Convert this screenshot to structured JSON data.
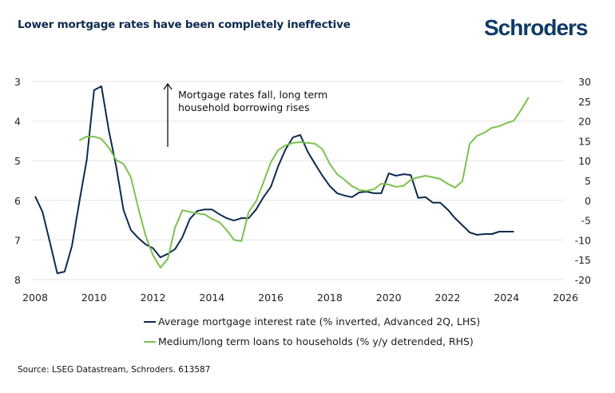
{
  "header": {
    "title": "Lower mortgage rates have been completely ineffective",
    "logo": "Schroders"
  },
  "chart_data": {
    "type": "line",
    "title": "Lower mortgage rates have been completely ineffective",
    "x_ticks": [
      "2008",
      "2010",
      "2012",
      "2014",
      "2016",
      "2018",
      "2020",
      "2022",
      "2024",
      "2026"
    ],
    "xlim": [
      2008,
      2026
    ],
    "y_left": {
      "ticks": [
        "3",
        "4",
        "5",
        "6",
        "7",
        "8"
      ],
      "range": [
        3,
        8
      ],
      "inverted": true
    },
    "y_right": {
      "ticks": [
        "30",
        "25",
        "20",
        "15",
        "10",
        "5",
        "0",
        "-5",
        "-10",
        "-15",
        "-20"
      ],
      "range": [
        -20,
        30
      ]
    },
    "grid": "horizontal",
    "legend_position": "bottom",
    "annotation": {
      "lines": [
        "Mortgage rates fall, long term",
        "household borrowing rises"
      ],
      "arrow": "up"
    },
    "series": [
      {
        "name": "Average mortgage interest rate (% inverted, Advanced 2Q, LHS)",
        "axis": "left",
        "color": "#0d2b4e",
        "x": [
          "2008Q1",
          "2008Q2",
          "2008Q3",
          "2008Q4",
          "2009Q1",
          "2009Q2",
          "2009Q3",
          "2009Q4",
          "2010Q1",
          "2010Q2",
          "2010Q3",
          "2010Q4",
          "2011Q1",
          "2011Q2",
          "2011Q3",
          "2011Q4",
          "2012Q1",
          "2012Q2",
          "2012Q3",
          "2012Q4",
          "2013Q1",
          "2013Q2",
          "2013Q3",
          "2013Q4",
          "2014Q1",
          "2014Q2",
          "2014Q3",
          "2014Q4",
          "2015Q1",
          "2015Q2",
          "2015Q3",
          "2015Q4",
          "2016Q1",
          "2016Q2",
          "2016Q3",
          "2016Q4",
          "2017Q1",
          "2017Q2",
          "2017Q3",
          "2017Q4",
          "2018Q1",
          "2018Q2",
          "2018Q3",
          "2018Q4",
          "2019Q1",
          "2019Q2",
          "2019Q3",
          "2019Q4",
          "2020Q1",
          "2020Q2",
          "2020Q3",
          "2020Q4",
          "2021Q1",
          "2021Q2",
          "2021Q3",
          "2021Q4",
          "2022Q1",
          "2022Q2",
          "2022Q3",
          "2022Q4",
          "2023Q1",
          "2023Q2",
          "2023Q3",
          "2023Q4",
          "2024Q1",
          "2024Q2"
        ],
        "values": [
          5.9,
          6.29,
          7.05,
          7.84,
          7.8,
          7.15,
          6.04,
          4.98,
          3.22,
          3.12,
          4.23,
          5.14,
          6.25,
          6.75,
          6.95,
          7.11,
          7.21,
          7.44,
          7.35,
          7.23,
          6.93,
          6.47,
          6.27,
          6.23,
          6.23,
          6.35,
          6.45,
          6.51,
          6.45,
          6.45,
          6.23,
          5.92,
          5.66,
          5.14,
          4.71,
          4.41,
          4.35,
          4.77,
          5.08,
          5.38,
          5.64,
          5.82,
          5.88,
          5.92,
          5.8,
          5.78,
          5.82,
          5.82,
          5.32,
          5.38,
          5.34,
          5.36,
          5.94,
          5.92,
          6.06,
          6.06,
          6.23,
          6.45,
          6.63,
          6.81,
          6.87,
          6.85,
          6.85,
          6.79,
          6.79,
          6.79
        ]
      },
      {
        "name": "Medium/long term loans to households (% y/y detrended, RHS)",
        "axis": "right",
        "color": "#7cc24e",
        "x": [
          "2009Q3",
          "2009Q4",
          "2010Q1",
          "2010Q2",
          "2010Q3",
          "2010Q4",
          "2011Q1",
          "2011Q2",
          "2011Q3",
          "2011Q4",
          "2012Q1",
          "2012Q2",
          "2012Q3",
          "2012Q4",
          "2013Q1",
          "2013Q2",
          "2013Q3",
          "2013Q4",
          "2014Q1",
          "2014Q2",
          "2014Q3",
          "2014Q4",
          "2015Q1",
          "2015Q2",
          "2015Q3",
          "2015Q4",
          "2016Q1",
          "2016Q2",
          "2016Q3",
          "2016Q4",
          "2017Q1",
          "2017Q2",
          "2017Q3",
          "2017Q4",
          "2018Q1",
          "2018Q2",
          "2018Q3",
          "2018Q4",
          "2019Q1",
          "2019Q2",
          "2019Q3",
          "2019Q4",
          "2020Q1",
          "2020Q2",
          "2020Q3",
          "2020Q4",
          "2021Q1",
          "2021Q2",
          "2021Q3",
          "2021Q4",
          "2022Q1",
          "2022Q2",
          "2022Q3",
          "2022Q4",
          "2023Q1",
          "2023Q2",
          "2023Q3",
          "2023Q4",
          "2024Q1",
          "2024Q2",
          "2024Q3",
          "2024Q4"
        ],
        "values": [
          15.1,
          16.1,
          16.1,
          15.5,
          13.3,
          10.2,
          9.2,
          5.8,
          -1.9,
          -8.9,
          -13.9,
          -17.0,
          -14.8,
          -6.9,
          -2.5,
          -2.9,
          -3.3,
          -3.5,
          -4.7,
          -5.5,
          -7.5,
          -10.0,
          -10.3,
          -2.9,
          -0.2,
          4.6,
          9.6,
          12.7,
          13.9,
          14.5,
          14.7,
          14.5,
          14.3,
          12.9,
          9.2,
          6.6,
          5.2,
          3.6,
          2.6,
          2.4,
          2.8,
          4.2,
          4.0,
          3.4,
          3.6,
          5.2,
          5.8,
          6.2,
          5.8,
          5.4,
          4.2,
          3.2,
          4.8,
          14.3,
          16.3,
          17.1,
          18.3,
          18.7,
          19.5,
          20.1,
          22.9,
          26.0
        ]
      }
    ]
  },
  "legend": {
    "items": [
      "Average mortgage interest rate (% inverted, Advanced 2Q, LHS)",
      "Medium/long term loans to households (% y/y detrended, RHS)"
    ]
  },
  "footer": {
    "source": "Source: LSEG Datastream, Schroders. 613587"
  }
}
